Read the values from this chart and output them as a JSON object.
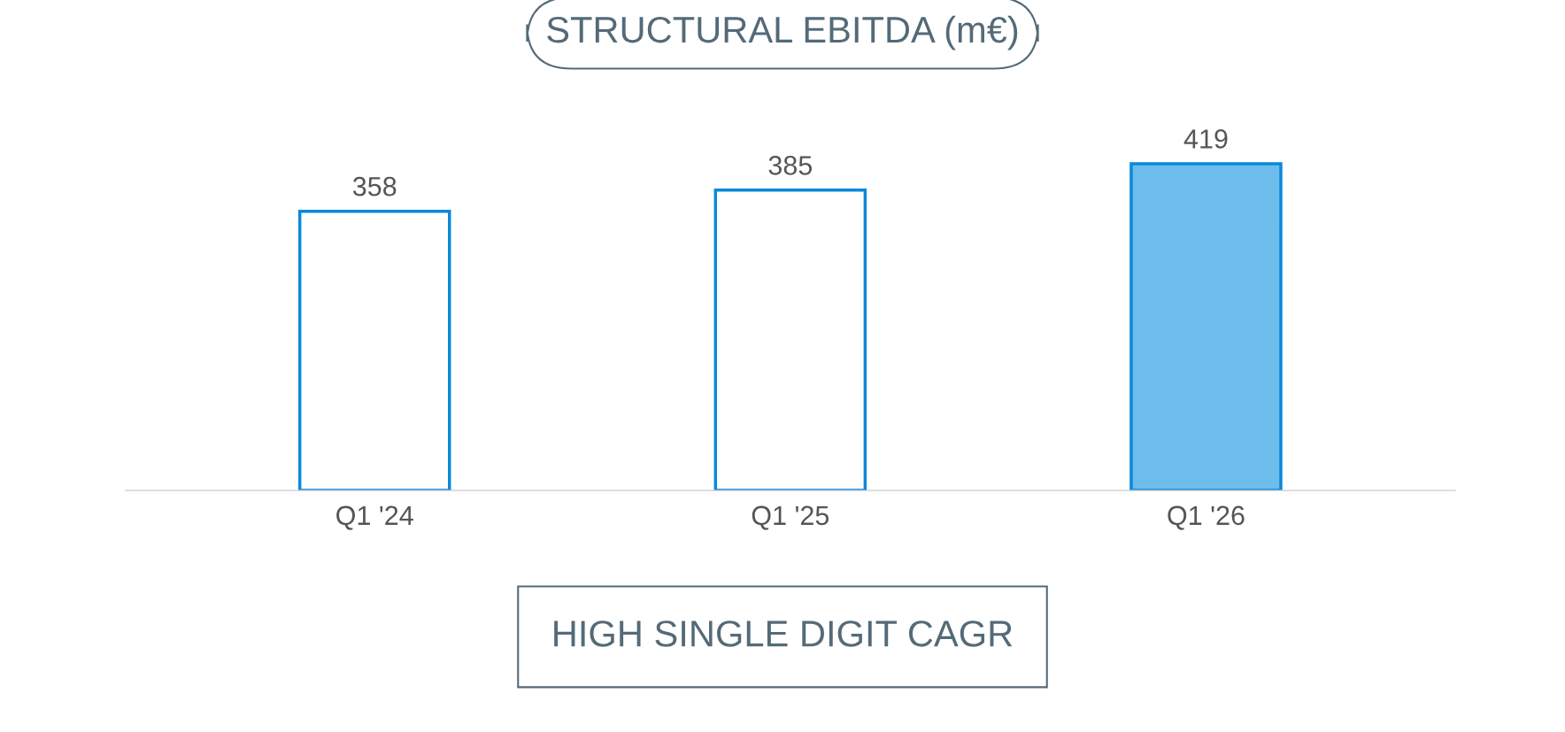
{
  "chart_data": {
    "type": "bar",
    "title": "STRUCTURAL EBITDA (m€)",
    "categories": [
      "Q1 '24",
      "Q1 '25",
      "Q1 '26"
    ],
    "values": [
      358,
      385,
      419
    ],
    "colors": [
      "#ffffff",
      "#ffffff",
      "#6cbdec"
    ],
    "data_labels": true,
    "annotations": [
      "HIGH SINGLE DIGIT CAGR"
    ]
  }
}
